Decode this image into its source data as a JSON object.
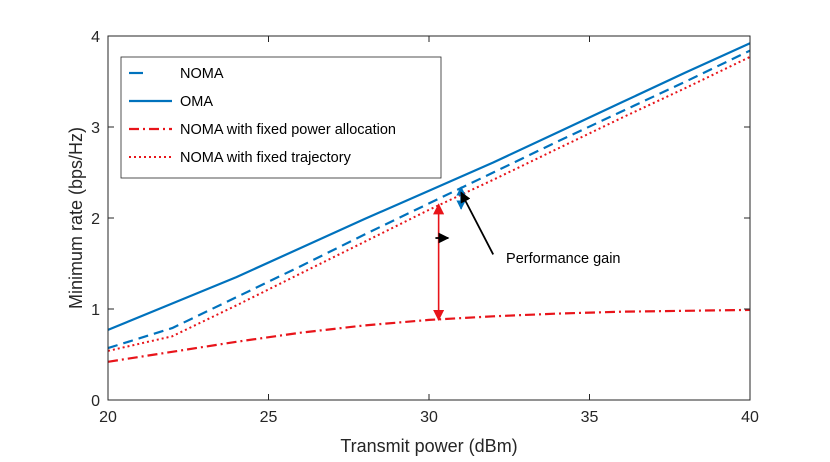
{
  "chart_data": {
    "type": "line",
    "xlabel": "Transmit power (dBm)",
    "ylabel": "Minimum rate (bps/Hz)",
    "xlim": [
      20,
      40
    ],
    "ylim": [
      0,
      4
    ],
    "xticks": [
      20,
      25,
      30,
      35,
      40
    ],
    "yticks": [
      0,
      1,
      2,
      3,
      4
    ],
    "x_tick_labels": [
      "20",
      "25",
      "30",
      "35",
      "40"
    ],
    "y_tick_labels": [
      "0",
      "1",
      "2",
      "3",
      "4"
    ],
    "grid": false,
    "legend_position": "top-left",
    "series": [
      {
        "name": "NOMA",
        "color": "#0072BD",
        "style": "dashed",
        "x": [
          20,
          22,
          24,
          26,
          28,
          30,
          32,
          34,
          36,
          38,
          40
        ],
        "y": [
          0.57,
          0.79,
          1.13,
          1.47,
          1.82,
          2.16,
          2.5,
          2.84,
          3.17,
          3.5,
          3.84
        ]
      },
      {
        "name": "OMA",
        "color": "#0072BD",
        "style": "solid",
        "x": [
          20,
          22,
          24,
          26,
          28,
          30,
          32,
          34,
          36,
          38,
          40
        ],
        "y": [
          0.77,
          1.06,
          1.35,
          1.67,
          1.99,
          2.3,
          2.61,
          2.94,
          3.27,
          3.6,
          3.92
        ]
      },
      {
        "name": "NOMA with fixed power allocation",
        "color": "#E8141A",
        "style": "dashdot",
        "x": [
          20,
          22,
          24,
          26,
          28,
          30,
          32,
          34,
          36,
          38,
          40
        ],
        "y": [
          0.42,
          0.53,
          0.64,
          0.74,
          0.82,
          0.88,
          0.92,
          0.95,
          0.97,
          0.98,
          0.99
        ]
      },
      {
        "name": "NOMA with fixed trajectory",
        "color": "#E8141A",
        "style": "dotted",
        "x": [
          20,
          22,
          24,
          26,
          28,
          30,
          32,
          34,
          36,
          38,
          40
        ],
        "y": [
          0.54,
          0.7,
          1.04,
          1.39,
          1.74,
          2.09,
          2.42,
          2.76,
          3.1,
          3.43,
          3.77
        ]
      }
    ],
    "annotations": [
      {
        "text": "Performance gain",
        "text_at": [
          32.4,
          1.56
        ],
        "arrows_from": [
          [
            32.0,
            1.6
          ],
          [
            30.2,
            1.78
          ]
        ],
        "arrows_to": [
          [
            31.0,
            2.28
          ],
          [
            30.6,
            1.78
          ]
        ]
      }
    ],
    "gain_markers": [
      {
        "color": "#E8141A",
        "x": 30.3,
        "y_from": 0.88,
        "y_to": 2.15
      },
      {
        "color": "#0072BD",
        "x": 31.0,
        "y_from": 2.1,
        "y_to": 2.34
      }
    ]
  }
}
